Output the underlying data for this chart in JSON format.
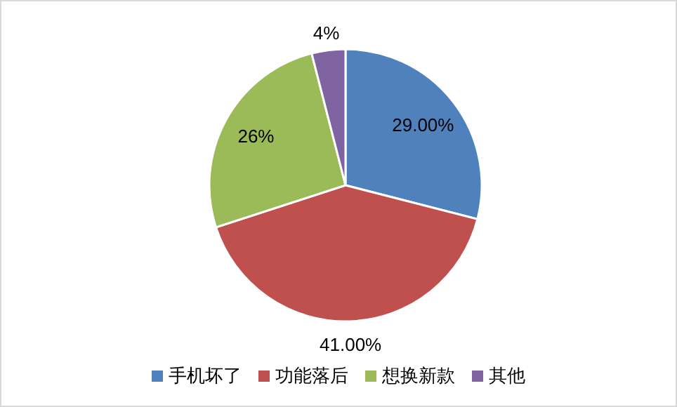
{
  "chart_data": {
    "type": "pie",
    "categories": [
      "手机坏了",
      "功能落后",
      "想换新款",
      "其他"
    ],
    "values": [
      29,
      41,
      26,
      4
    ],
    "colors": [
      "#4f81bd",
      "#c0504d",
      "#9bbb59",
      "#8064a2"
    ],
    "value_labels": [
      "29.00%",
      "41.00%",
      "26%",
      "4%"
    ],
    "legend": "bottom"
  }
}
